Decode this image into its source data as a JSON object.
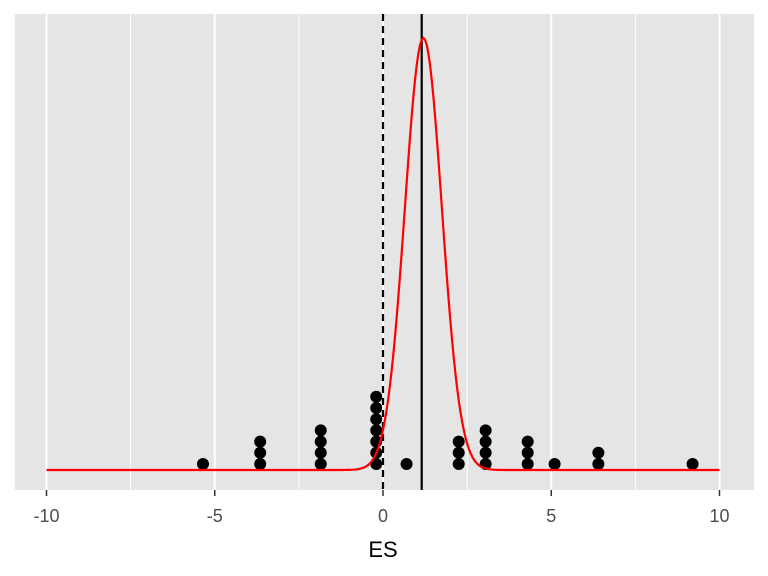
{
  "chart_data": {
    "type": "scatter",
    "title": "",
    "xlabel": "ES",
    "ylabel": "",
    "xlim": [
      -10,
      10
    ],
    "x_ticks": [
      -10,
      -5,
      0,
      5,
      10
    ],
    "x_tick_labels": [
      "-10",
      "-5",
      "0",
      "5",
      "10"
    ],
    "grid": true,
    "y_axis_shown": false,
    "dots": [
      {
        "x": -5.35,
        "count": 1
      },
      {
        "x": -3.65,
        "count": 3
      },
      {
        "x": -1.85,
        "count": 4
      },
      {
        "x": -0.2,
        "count": 7
      },
      {
        "x": 0.7,
        "count": 1
      },
      {
        "x": 2.25,
        "count": 3
      },
      {
        "x": 3.05,
        "count": 4
      },
      {
        "x": 4.3,
        "count": 3
      },
      {
        "x": 5.1,
        "count": 1
      },
      {
        "x": 6.4,
        "count": 2
      },
      {
        "x": 9.2,
        "count": 1
      }
    ],
    "reference_lines": [
      {
        "x": 0,
        "style": "dashed",
        "color": "#000000"
      },
      {
        "x": 1.15,
        "style": "solid",
        "color": "#000000"
      }
    ],
    "curve": {
      "type": "normal-density",
      "mean": 1.2,
      "sd": 0.55,
      "color": "#ff0000"
    },
    "colors": {
      "panel": "#e5e5e5",
      "grid": "#ffffff",
      "dots": "#000000"
    }
  }
}
